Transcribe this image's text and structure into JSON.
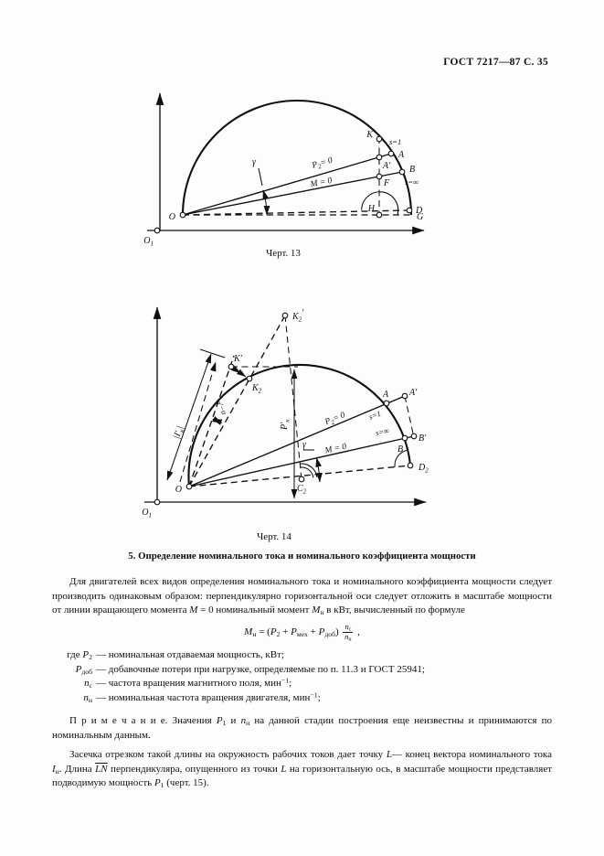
{
  "header": {
    "title": "ГОСТ 7217—87 С. 35"
  },
  "fig13": {
    "caption": "Черт. 13",
    "labels": {
      "o1_main": "O",
      "o1_sub": "1",
      "o": "O",
      "k": "K",
      "s1": "s=1",
      "a": "A",
      "a_prime": "A′",
      "b": "B",
      "s_inf": "s=∞",
      "f": "F",
      "d": "D",
      "h": "H",
      "g": "G",
      "gamma": "γ",
      "p2_main": "P",
      "p2_sub": "2",
      "p2_tail": "= 0",
      "m0": "M = 0"
    }
  },
  "fig14": {
    "caption": "Черт. 14",
    "labels": {
      "o1_main": "O",
      "o1_sub": "1",
      "o": "O",
      "k2p_main": "K",
      "k2p_prime": "′",
      "k2p_sub": "2",
      "kp": "K′",
      "k2_main": "K",
      "k2_sub": "2",
      "a": "A",
      "a_prime": "A′",
      "b": "B",
      "b_prime": "B′",
      "s1": "s=1",
      "s_inf": "s=∞",
      "c2_main": "C",
      "c2_sub": "2",
      "d2_main": "D",
      "d2_sub": "2",
      "gamma": "γ",
      "alpha": "α′−α",
      "p2_main": "P",
      "p2_sub": "2",
      "p2_tail": "= 0",
      "m0": "M = 0",
      "pk_main": "P′",
      "pk_sub": "к",
      "ik_open": "|I′",
      "ik_sub": "к",
      "ik_close": "|"
    }
  },
  "section": {
    "heading": "5. Определение номинального тока и номинального коэффициента мощности"
  },
  "para1": [
    {
      "t": "Для двигателей всех видов определения номинального тока и номинального коэффициента мощности следует производить одинаковым образом: перпендикулярно горизонтальной оси следует отложить в масштабе мощности от линии вращающего момента "
    },
    {
      "t": "М",
      "i": 1
    },
    {
      "t": " = 0 номинальный момент "
    },
    {
      "t": "М",
      "i": 1
    },
    {
      "t": "н",
      "sub": 1
    },
    {
      "t": " в кВт, вычисленный по формуле"
    }
  ],
  "formula": {
    "main": [
      {
        "t": "М",
        "i": 1
      },
      {
        "t": "н",
        "sub": 1
      },
      {
        "t": " = ("
      },
      {
        "t": "P",
        "i": 1
      },
      {
        "t": "2",
        "sub": 1
      },
      {
        "t": " + "
      },
      {
        "t": "P",
        "i": 1
      },
      {
        "t": "мех",
        "sub": 1
      },
      {
        "t": " + "
      },
      {
        "t": "P",
        "i": 1
      },
      {
        "t": "доб",
        "sub": 1
      },
      {
        "t": ") "
      }
    ],
    "frac_num": [
      {
        "t": "n",
        "i": 1
      },
      {
        "t": "с",
        "sub": 1
      }
    ],
    "frac_den": [
      {
        "t": "n",
        "i": 1
      },
      {
        "t": "н",
        "sub": 1
      }
    ],
    "tail": [
      {
        "t": " ,"
      }
    ]
  },
  "where": {
    "items": [
      {
        "sym": [
          {
            "t": "где "
          },
          {
            "t": "P",
            "i": 1
          },
          {
            "t": "2",
            "sub": 1
          }
        ],
        "desc": [
          {
            "t": "— номинальная отдаваемая мощность, кВт;"
          }
        ]
      },
      {
        "sym": [
          {
            "t": "P",
            "i": 1
          },
          {
            "t": "доб",
            "sub": 1
          }
        ],
        "desc": [
          {
            "t": "— добавочные потери при нагрузке, определяемые по п. 11.3 и ГОСТ 25941;"
          }
        ]
      },
      {
        "sym": [
          {
            "t": "n",
            "i": 1
          },
          {
            "t": "с",
            "sub": 1
          }
        ],
        "desc": [
          {
            "t": "— частота вращения магнитного поля, мин"
          },
          {
            "t": "−1",
            "sup": 1
          },
          {
            "t": ";"
          }
        ]
      },
      {
        "sym": [
          {
            "t": "n",
            "i": 1
          },
          {
            "t": "н",
            "sub": 1
          }
        ],
        "desc": [
          {
            "t": "— номинальная частота вращения двигателя, мин"
          },
          {
            "t": "−1",
            "sup": 1
          },
          {
            "t": ";"
          }
        ]
      }
    ]
  },
  "note": [
    {
      "t": "П р и м е ч а н и е.  Значения "
    },
    {
      "t": "P",
      "i": 1
    },
    {
      "t": "1",
      "sub": 1
    },
    {
      "t": " и "
    },
    {
      "t": "n",
      "i": 1
    },
    {
      "t": "н",
      "sub": 1
    },
    {
      "t": " на данной стадии построения еще неизвестны и принимаются по номинальным данным."
    }
  ],
  "para2": [
    {
      "t": "Засечка отрезком такой длины на окружность рабочих токов дает точку "
    },
    {
      "t": "L",
      "i": 1
    },
    {
      "t": "— конец вектора номинального тока "
    },
    {
      "t": "I",
      "i": 1
    },
    {
      "t": "н",
      "sub": 1
    },
    {
      "t": ". Длина "
    },
    {
      "t": "LN",
      "i": 1,
      "ov": 1
    },
    {
      "t": " перпендикуляра, опущенного из точки "
    },
    {
      "t": "L",
      "i": 1
    },
    {
      "t": " на горизонтальную ось, в масштабе мощности представляет подводимую мощность "
    },
    {
      "t": "P",
      "i": 1
    },
    {
      "t": "1",
      "sub": 1
    },
    {
      "t": " (черт. 15)."
    }
  ]
}
